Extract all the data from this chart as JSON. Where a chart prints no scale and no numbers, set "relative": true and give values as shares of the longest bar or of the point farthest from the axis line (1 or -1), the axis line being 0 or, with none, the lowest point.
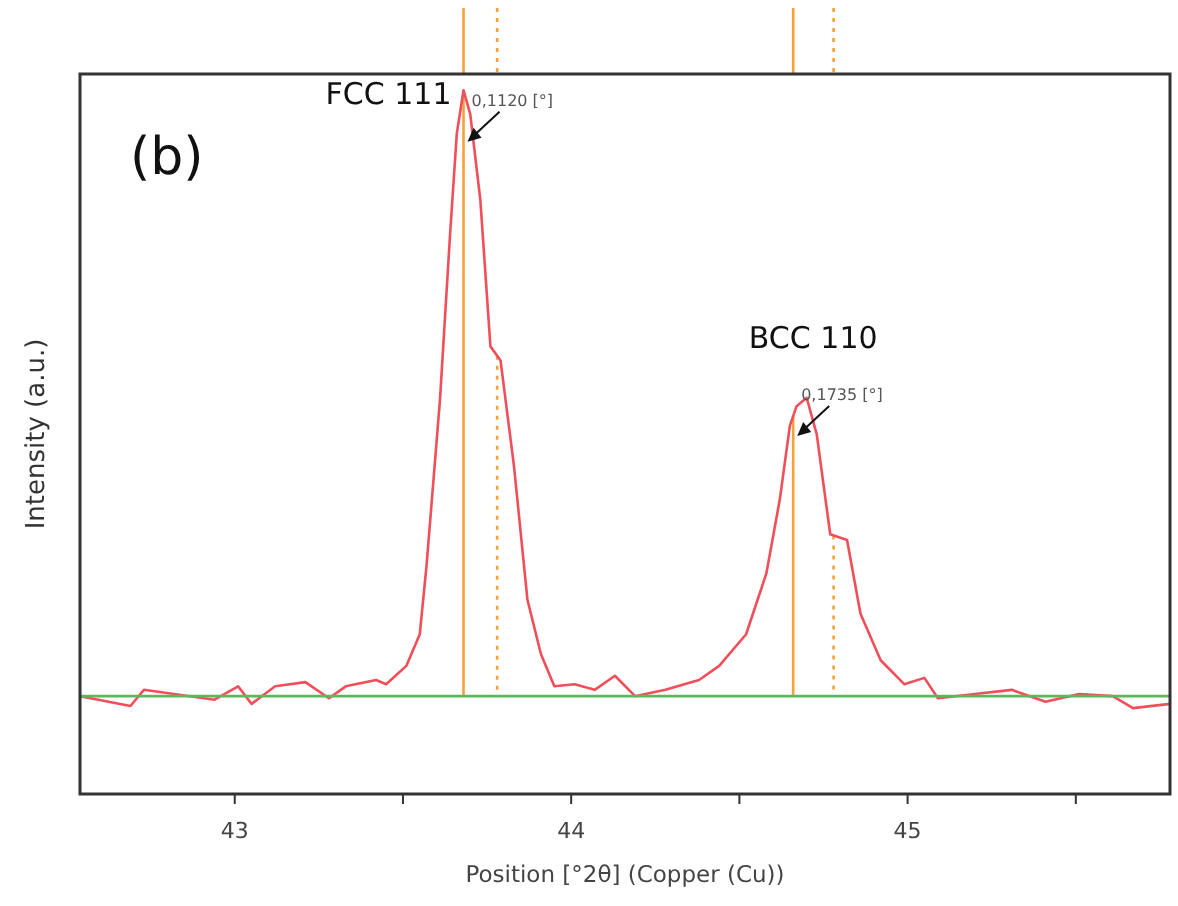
{
  "chart_data": {
    "type": "line",
    "relative": true,
    "xlabel": "Position [°2θ] (Copper (Cu))",
    "ylabel": "Intensity (a.u.)",
    "xlim": [
      42.54,
      45.78
    ],
    "xticks": [
      43,
      {
        "value": 43.5,
        "label": null
      },
      44,
      {
        "value": 44.5,
        "label": null
      },
      45,
      {
        "value": 45.5,
        "label": null
      }
    ],
    "series": [
      {
        "color": "#ef4f5a",
        "x": [
          42.54,
          42.69,
          42.73,
          42.94,
          43.01,
          43.05,
          43.12,
          43.21,
          43.28,
          43.33,
          43.42,
          43.45,
          43.51,
          43.55,
          43.57,
          43.61,
          43.64,
          43.66,
          43.68,
          43.7,
          43.73,
          43.76,
          43.79,
          43.83,
          43.87,
          43.91,
          43.95,
          44.01,
          44.07,
          44.13,
          44.19,
          44.28,
          44.38,
          44.44,
          44.52,
          44.58,
          44.62,
          44.65,
          44.67,
          44.7,
          44.73,
          44.77,
          44.82,
          44.86,
          44.92,
          44.99,
          45.05,
          45.09,
          45.2,
          45.31,
          45.41,
          45.51,
          45.61,
          45.67,
          45.78
        ],
        "values": [
          0.139,
          0.125,
          0.148,
          0.134,
          0.153,
          0.128,
          0.153,
          0.159,
          0.136,
          0.153,
          0.162,
          0.156,
          0.182,
          0.227,
          0.324,
          0.56,
          0.795,
          0.938,
          1,
          0.966,
          0.844,
          0.636,
          0.616,
          0.466,
          0.276,
          0.199,
          0.153,
          0.156,
          0.148,
          0.168,
          0.139,
          0.148,
          0.162,
          0.182,
          0.227,
          0.313,
          0.418,
          0.523,
          0.551,
          0.563,
          0.511,
          0.369,
          0.361,
          0.256,
          0.19,
          0.156,
          0.165,
          0.136,
          0.142,
          0.148,
          0.131,
          0.142,
          0.139,
          0.122,
          0.128
        ]
      },
      {
        "color": "#5cb85c",
        "x": [
          42.54,
          45.78
        ],
        "values": [
          0.139,
          0.139
        ]
      }
    ],
    "ref_lines": [
      {
        "axis": "x",
        "value": 43.68,
        "color": "#f5a23a",
        "line_style": "solid"
      },
      {
        "axis": "x",
        "value": 43.78,
        "color": "#f5a23a",
        "line_style": "dotted"
      },
      {
        "axis": "x",
        "value": 44.66,
        "color": "#f5a23a",
        "line_style": "solid"
      },
      {
        "axis": "x",
        "value": 44.78,
        "color": "#f5a23a",
        "line_style": "dotted"
      }
    ],
    "annotations": [
      "(b)",
      "FCC 111",
      {
        "text": "0,1120 [°]",
        "x": 43.68,
        "y": 0.938
      },
      "BCC 110",
      {
        "text": "0,1735 [°]",
        "x": 44.66,
        "y": 0.52
      }
    ],
    "grid": false,
    "line_style": "solid"
  }
}
